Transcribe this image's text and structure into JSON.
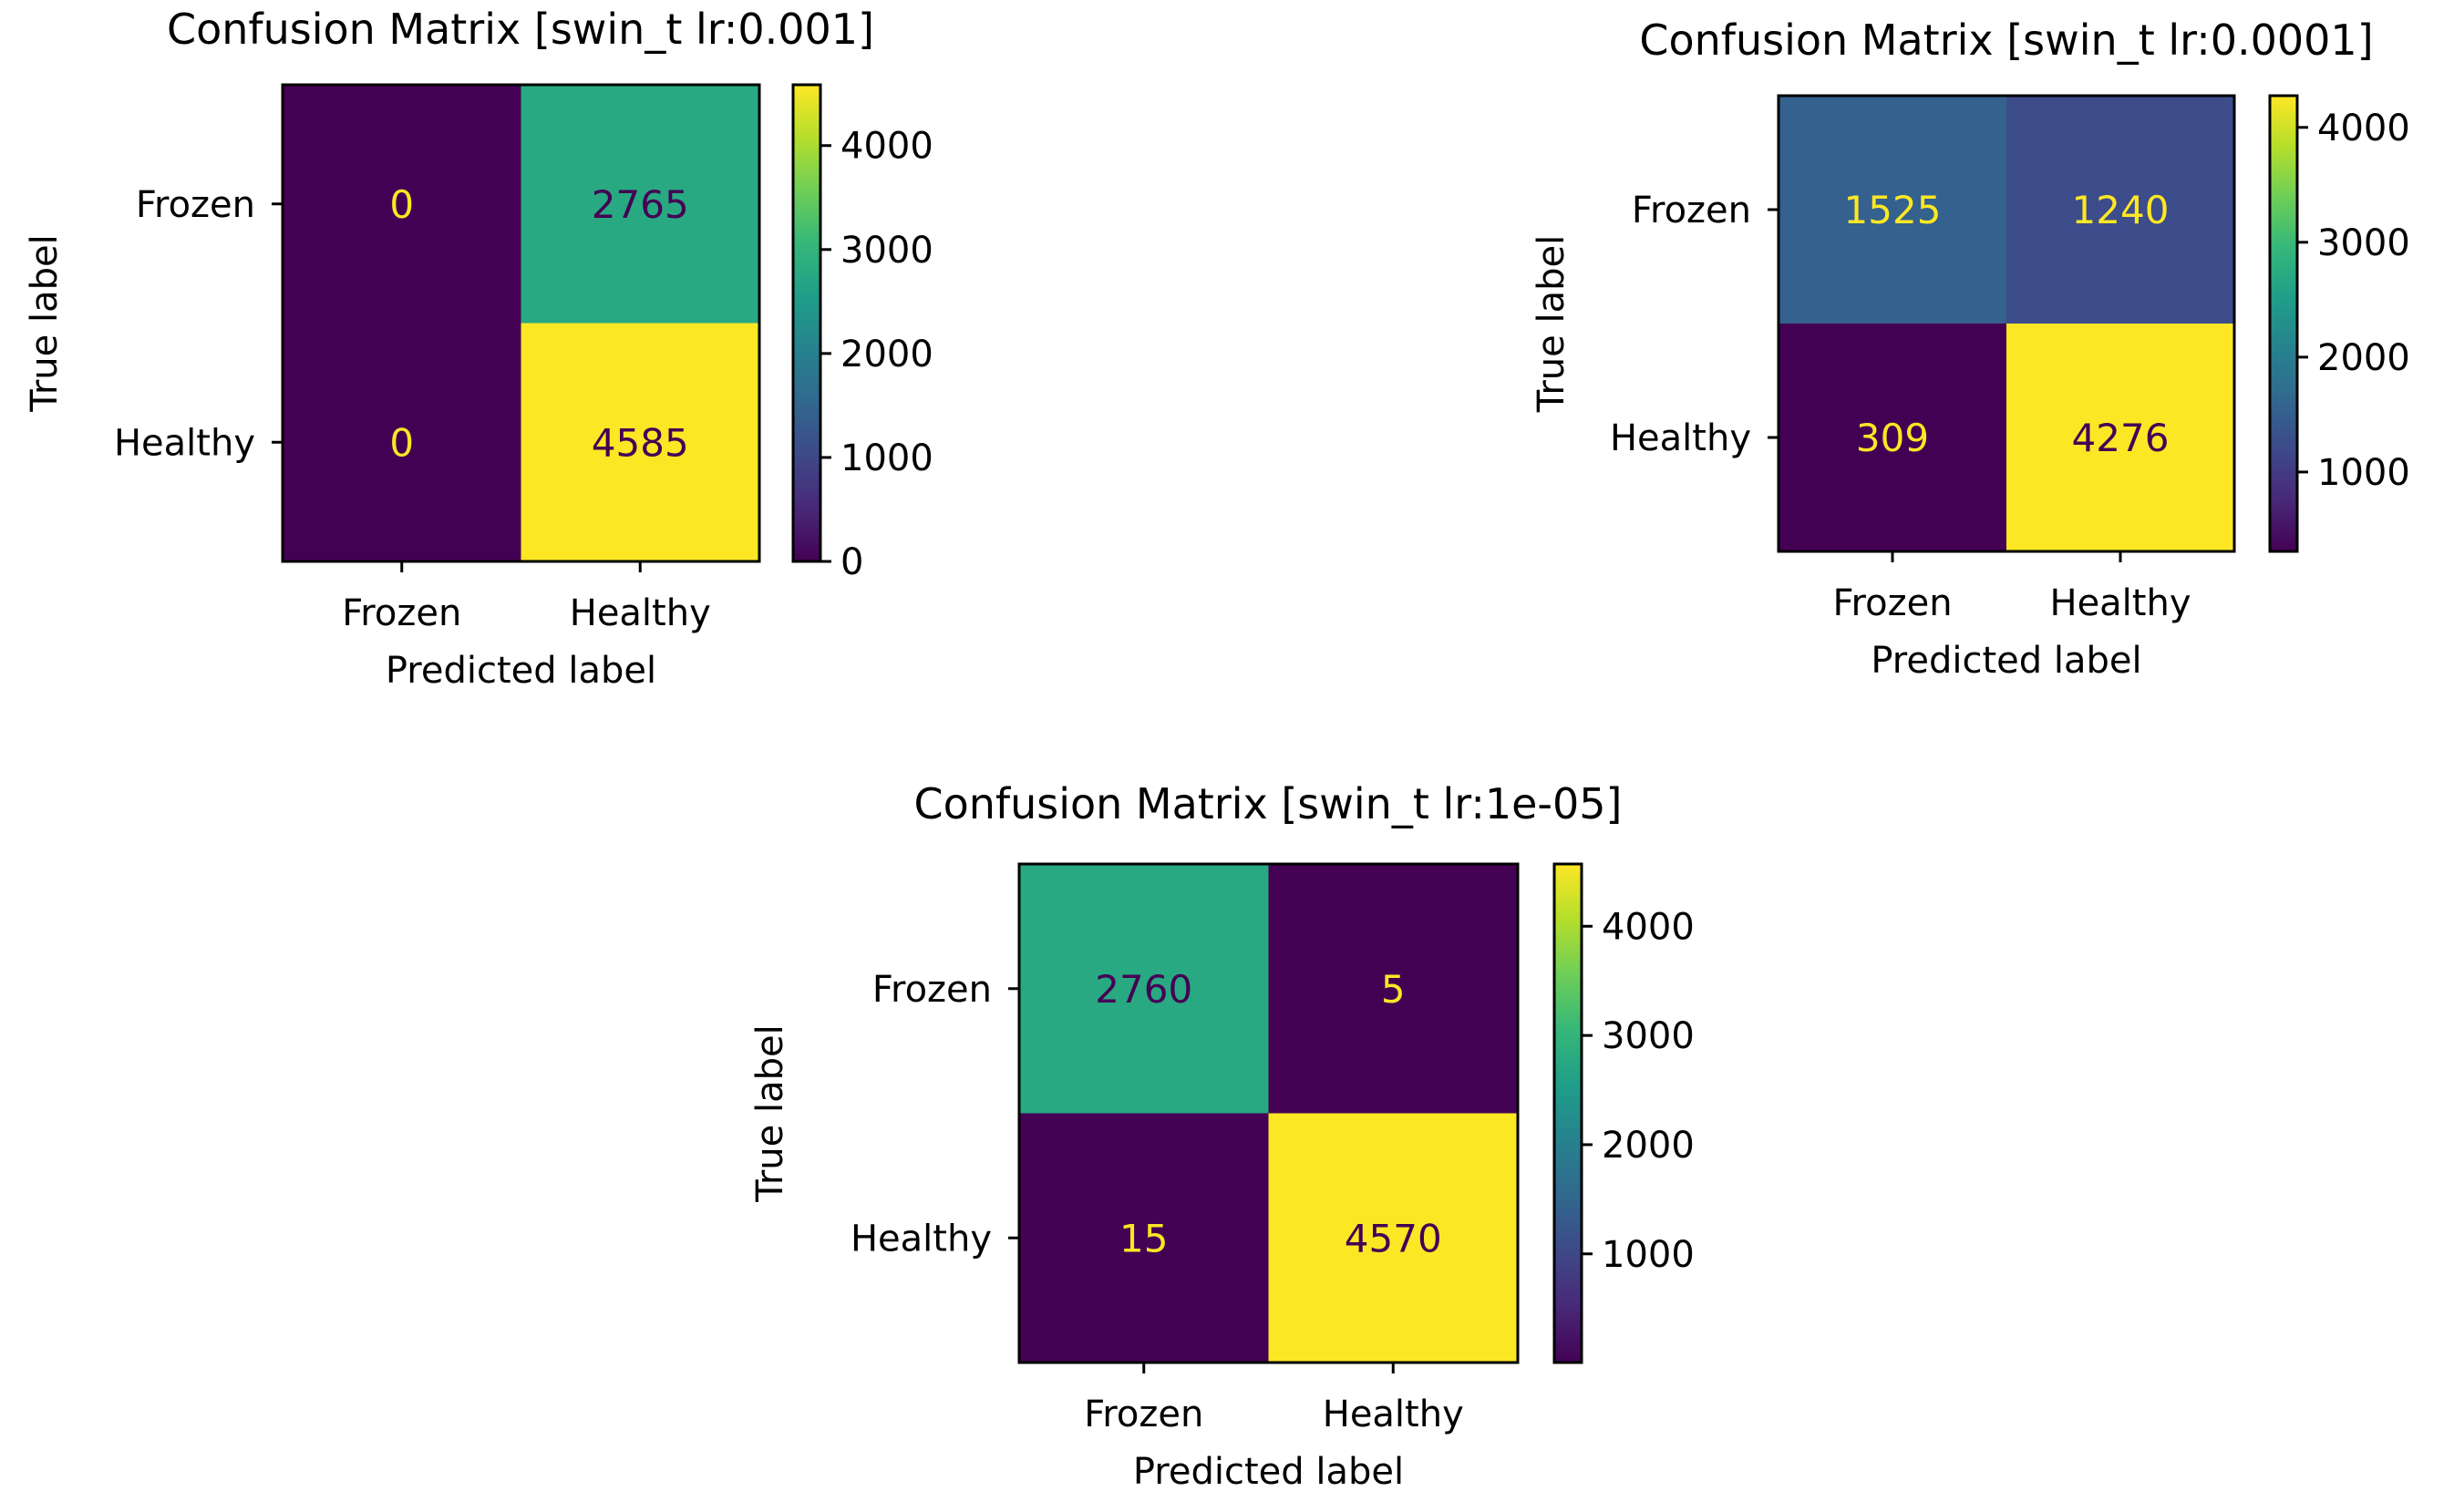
{
  "chart_data": [
    {
      "type": "heatmap",
      "title": "Confusion Matrix [swin_t lr:0.001]",
      "xlabel": "Predicted label",
      "ylabel": "True label",
      "x_categories": [
        "Frozen",
        "Healthy"
      ],
      "y_categories": [
        "Frozen",
        "Healthy"
      ],
      "values": [
        [
          0,
          2765
        ],
        [
          0,
          4585
        ]
      ],
      "colorbar": {
        "min": 0,
        "max": 4585,
        "ticks": [
          0,
          1000,
          2000,
          3000,
          4000
        ]
      }
    },
    {
      "type": "heatmap",
      "title": "Confusion Matrix [swin_t lr:0.0001]",
      "xlabel": "Predicted label",
      "ylabel": "True label",
      "x_categories": [
        "Frozen",
        "Healthy"
      ],
      "y_categories": [
        "Frozen",
        "Healthy"
      ],
      "values": [
        [
          1525,
          1240
        ],
        [
          309,
          4276
        ]
      ],
      "colorbar": {
        "min": 309,
        "max": 4276,
        "ticks": [
          1000,
          2000,
          3000,
          4000
        ]
      }
    },
    {
      "type": "heatmap",
      "title": "Confusion Matrix [swin_t lr:1e-05]",
      "xlabel": "Predicted label",
      "ylabel": "True label",
      "x_categories": [
        "Frozen",
        "Healthy"
      ],
      "y_categories": [
        "Frozen",
        "Healthy"
      ],
      "values": [
        [
          2760,
          5
        ],
        [
          15,
          4570
        ]
      ],
      "colorbar": {
        "min": 5,
        "max": 4570,
        "ticks": [
          1000,
          2000,
          3000,
          4000
        ]
      }
    }
  ],
  "colormap": {
    "name": "viridis",
    "stops": [
      "#440154",
      "#482878",
      "#3e4989",
      "#31688e",
      "#26828e",
      "#1f9e89",
      "#35b779",
      "#6ece58",
      "#b5de2b",
      "#fde725"
    ]
  }
}
